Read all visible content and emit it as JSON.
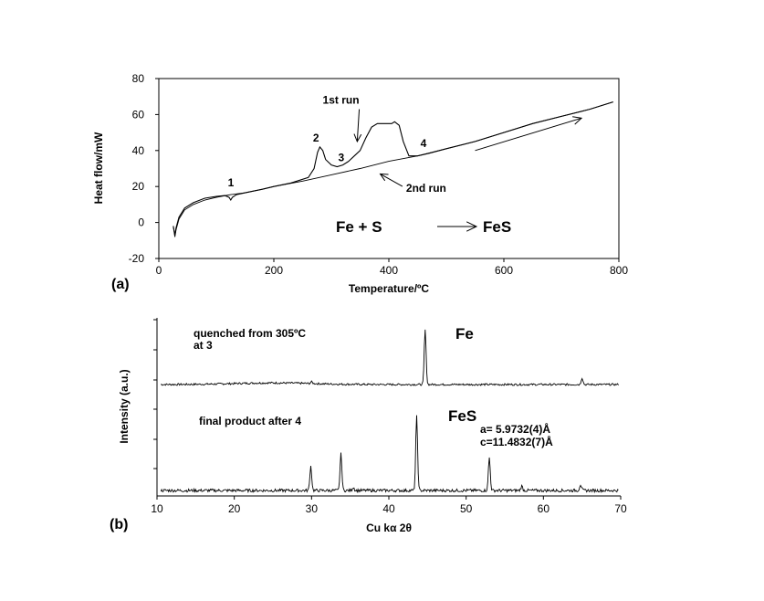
{
  "chart_data": [
    {
      "type": "line",
      "panel_label": "(a)",
      "xlabel": "Temperature/ºC",
      "ylabel": "Heat flow/mW",
      "xlim": [
        0,
        800
      ],
      "ylim": [
        -20,
        80
      ],
      "x_ticks": [
        0,
        200,
        400,
        600,
        800
      ],
      "y_ticks": [
        -20,
        0,
        20,
        40,
        60,
        80
      ],
      "grid": false,
      "series": [
        {
          "name": "1st run",
          "x": [
            25,
            28,
            30,
            35,
            45,
            60,
            80,
            100,
            115,
            122,
            125,
            128,
            135,
            150,
            180,
            200,
            230,
            260,
            270,
            276,
            280,
            285,
            290,
            300,
            310,
            320,
            330,
            340,
            350,
            360,
            370,
            380,
            390,
            400,
            405,
            410,
            418,
            425,
            435,
            450,
            470,
            500,
            550,
            600,
            650,
            700,
            750,
            790
          ],
          "y": [
            -2,
            -7,
            -3,
            3,
            8,
            11,
            13.5,
            14.5,
            15,
            14,
            12.5,
            14,
            15.5,
            16.5,
            18.5,
            20,
            22,
            25,
            30,
            39,
            42,
            40,
            35,
            32,
            31,
            32,
            34,
            37,
            40,
            47,
            53,
            55,
            55,
            55,
            55,
            56,
            54,
            45,
            37,
            37,
            38.5,
            41,
            45,
            50,
            55,
            59,
            63,
            67
          ]
        },
        {
          "name": "2nd run",
          "x": [
            25,
            28,
            30,
            35,
            45,
            60,
            80,
            100,
            125,
            150,
            180,
            200,
            250,
            300,
            350,
            400,
            450,
            500,
            550,
            600,
            650,
            700,
            750,
            790
          ],
          "y": [
            -2,
            -8,
            -4,
            2,
            7,
            10,
            12.5,
            14,
            15.5,
            16.5,
            18.5,
            20,
            23,
            26.5,
            30,
            34,
            37,
            41,
            45,
            50,
            55,
            59,
            63,
            67
          ]
        }
      ],
      "annotations": [
        {
          "text": "1",
          "x": 120,
          "y": 20
        },
        {
          "text": "2",
          "x": 268,
          "y": 45
        },
        {
          "text": "3",
          "x": 312,
          "y": 34
        },
        {
          "text": "4",
          "x": 455,
          "y": 42
        },
        {
          "text": "1st run",
          "x": 285,
          "y": 66,
          "arrow_to": [
            345,
            45
          ]
        },
        {
          "text": "2nd run",
          "x": 430,
          "y": 17,
          "arrow_to": [
            385,
            27
          ]
        }
      ],
      "equation": "Fe + S → FeS",
      "heating_arrow": {
        "from": [
          550,
          40
        ],
        "to": [
          735,
          58
        ]
      }
    },
    {
      "type": "line",
      "panel_label": "(b)",
      "xlabel": "Cu kα 2θ",
      "ylabel": "Intensity (a.u.)",
      "xlim": [
        10,
        70
      ],
      "x_ticks": [
        10,
        20,
        30,
        40,
        50,
        60,
        70
      ],
      "y_ticks_unlabeled": true,
      "grid": false,
      "series": [
        {
          "name": "Fe",
          "baseline": 1.0,
          "peaks": [
            {
              "x": 44.7,
              "height": 1.0
            },
            {
              "x": 65.0,
              "height": 0.12
            },
            {
              "x": 30.0,
              "height": 0.03
            }
          ]
        },
        {
          "name": "FeS",
          "baseline": 1.0,
          "peaks": [
            {
              "x": 29.9,
              "height": 0.28
            },
            {
              "x": 33.8,
              "height": 0.42
            },
            {
              "x": 35.4,
              "height": 0.04
            },
            {
              "x": 43.6,
              "height": 0.85
            },
            {
              "x": 53.0,
              "height": 0.38
            },
            {
              "x": 57.2,
              "height": 0.05
            },
            {
              "x": 64.8,
              "height": 0.07
            }
          ]
        }
      ],
      "annotations": {
        "fe_condition": [
          "quenched from 305ºC",
          "at 3"
        ],
        "fe_label": "Fe",
        "fes_condition": "final product after 4",
        "fes_label": "FeS",
        "lattice_a": "a=  5.9732(4)Å",
        "lattice_c": "c=11.4832(7)Å"
      }
    }
  ]
}
